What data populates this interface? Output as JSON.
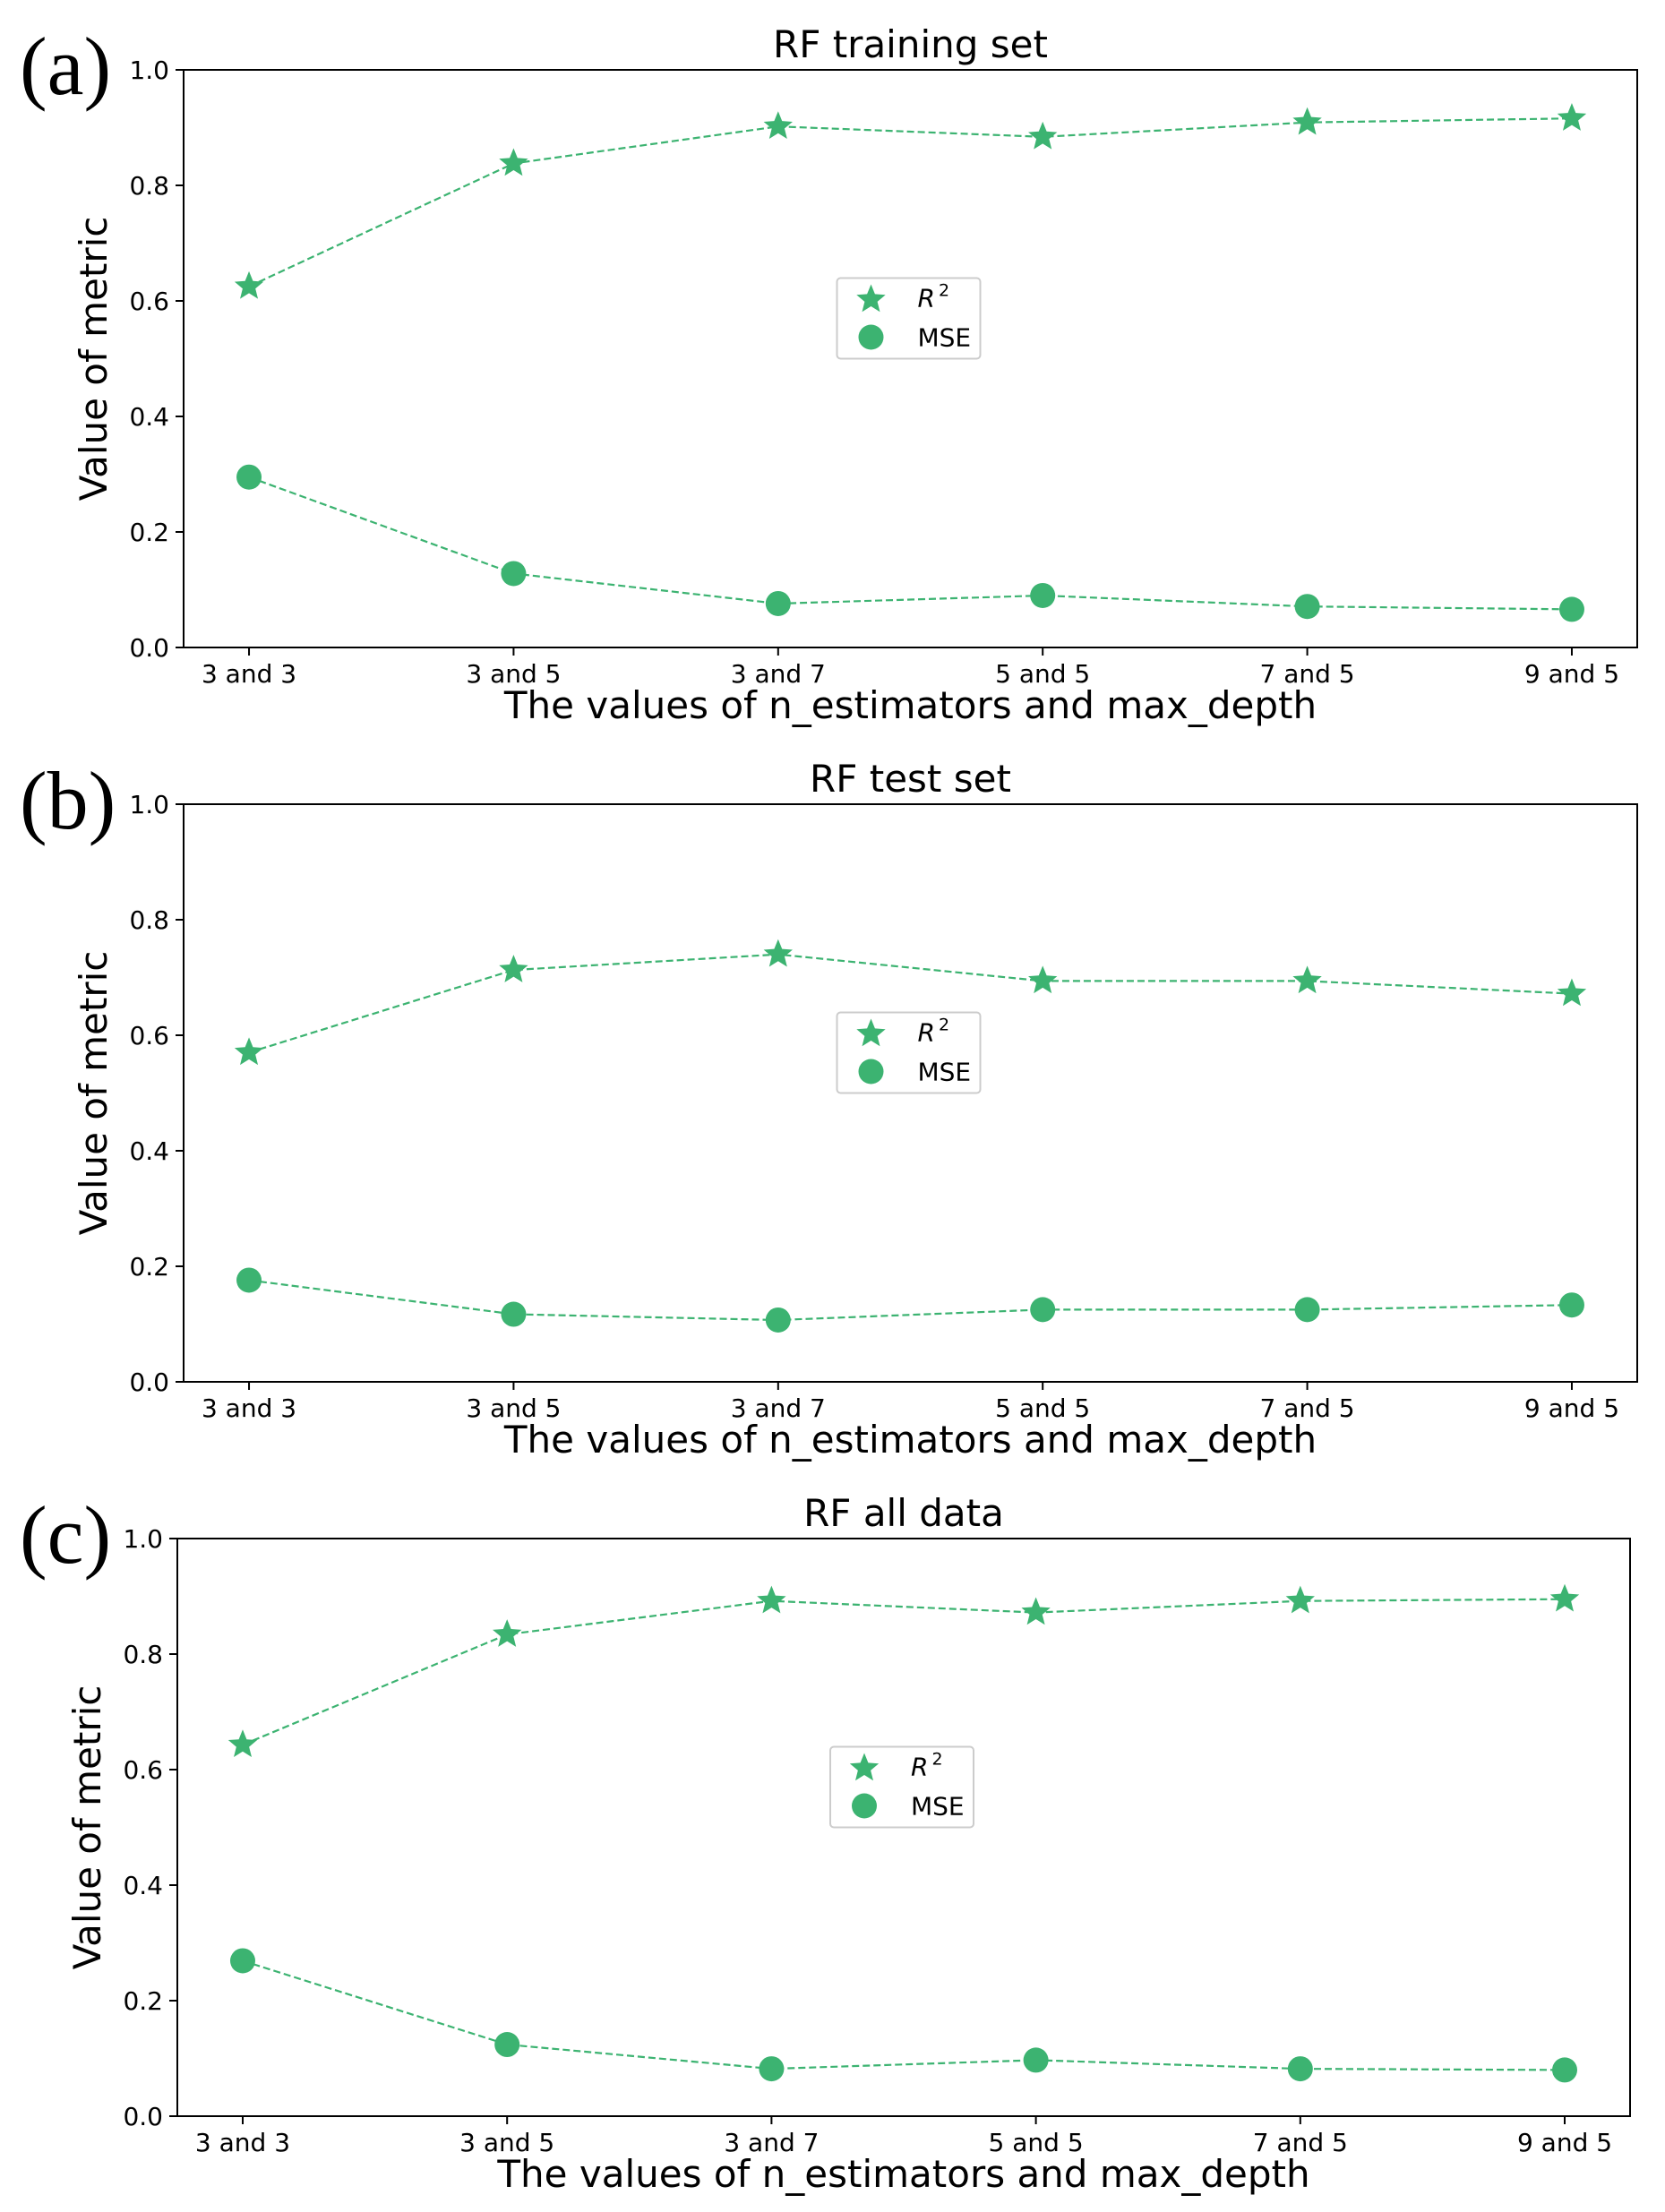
{
  "style": {
    "series_color": "#3cb371",
    "axis_color": "#000000",
    "legend_border": "#cccccc"
  },
  "chart_data": [
    {
      "type": "line",
      "panel_label": "(a)",
      "title": "RF training set",
      "xlabel": "The values of n_estimators and max_depth",
      "ylabel": "Value of metric",
      "categories": [
        "3 and 3",
        "3 and 5",
        "3 and 7",
        "5 and 5",
        "7 and 5",
        "9 and 5"
      ],
      "ylim": [
        0.0,
        1.0
      ],
      "yticks": [
        "0.0",
        "0.2",
        "0.4",
        "0.6",
        "0.8",
        "1.0"
      ],
      "legend": "center",
      "series": [
        {
          "name": "R²",
          "name_base": "R",
          "name_sup": "2",
          "marker": "star",
          "values": [
            0.625,
            0.838,
            0.902,
            0.884,
            0.909,
            0.916
          ]
        },
        {
          "name": "MSE",
          "marker": "circle",
          "values": [
            0.295,
            0.128,
            0.076,
            0.09,
            0.071,
            0.066
          ]
        }
      ]
    },
    {
      "type": "line",
      "panel_label": "(b)",
      "title": "RF test set",
      "xlabel": "The values of n_estimators and max_depth",
      "ylabel": "Value of metric",
      "categories": [
        "3 and 3",
        "3 and 5",
        "3 and 7",
        "5 and 5",
        "7 and 5",
        "9 and 5"
      ],
      "ylim": [
        0.0,
        1.0
      ],
      "yticks": [
        "0.0",
        "0.2",
        "0.4",
        "0.6",
        "0.8",
        "1.0"
      ],
      "legend": "center",
      "series": [
        {
          "name": "R²",
          "name_base": "R",
          "name_sup": "2",
          "marker": "star",
          "values": [
            0.57,
            0.713,
            0.74,
            0.694,
            0.694,
            0.672
          ]
        },
        {
          "name": "MSE",
          "marker": "circle",
          "values": [
            0.176,
            0.117,
            0.107,
            0.125,
            0.125,
            0.133
          ]
        }
      ]
    },
    {
      "type": "line",
      "panel_label": "(c)",
      "title": "RF all data",
      "xlabel": "The values of n_estimators and max_depth",
      "ylabel": "Value of metric",
      "categories": [
        "3 and 3",
        "3 and 5",
        "3 and 7",
        "5 and 5",
        "7 and 5",
        "9 and 5"
      ],
      "ylim": [
        0.0,
        1.0
      ],
      "yticks": [
        "0.0",
        "0.2",
        "0.4",
        "0.6",
        "0.8",
        "1.0"
      ],
      "legend": "center",
      "series": [
        {
          "name": "R²",
          "name_base": "R",
          "name_sup": "2",
          "marker": "star",
          "values": [
            0.643,
            0.834,
            0.892,
            0.872,
            0.892,
            0.895
          ]
        },
        {
          "name": "MSE",
          "marker": "circle",
          "values": [
            0.269,
            0.124,
            0.082,
            0.097,
            0.082,
            0.08
          ]
        }
      ]
    }
  ]
}
